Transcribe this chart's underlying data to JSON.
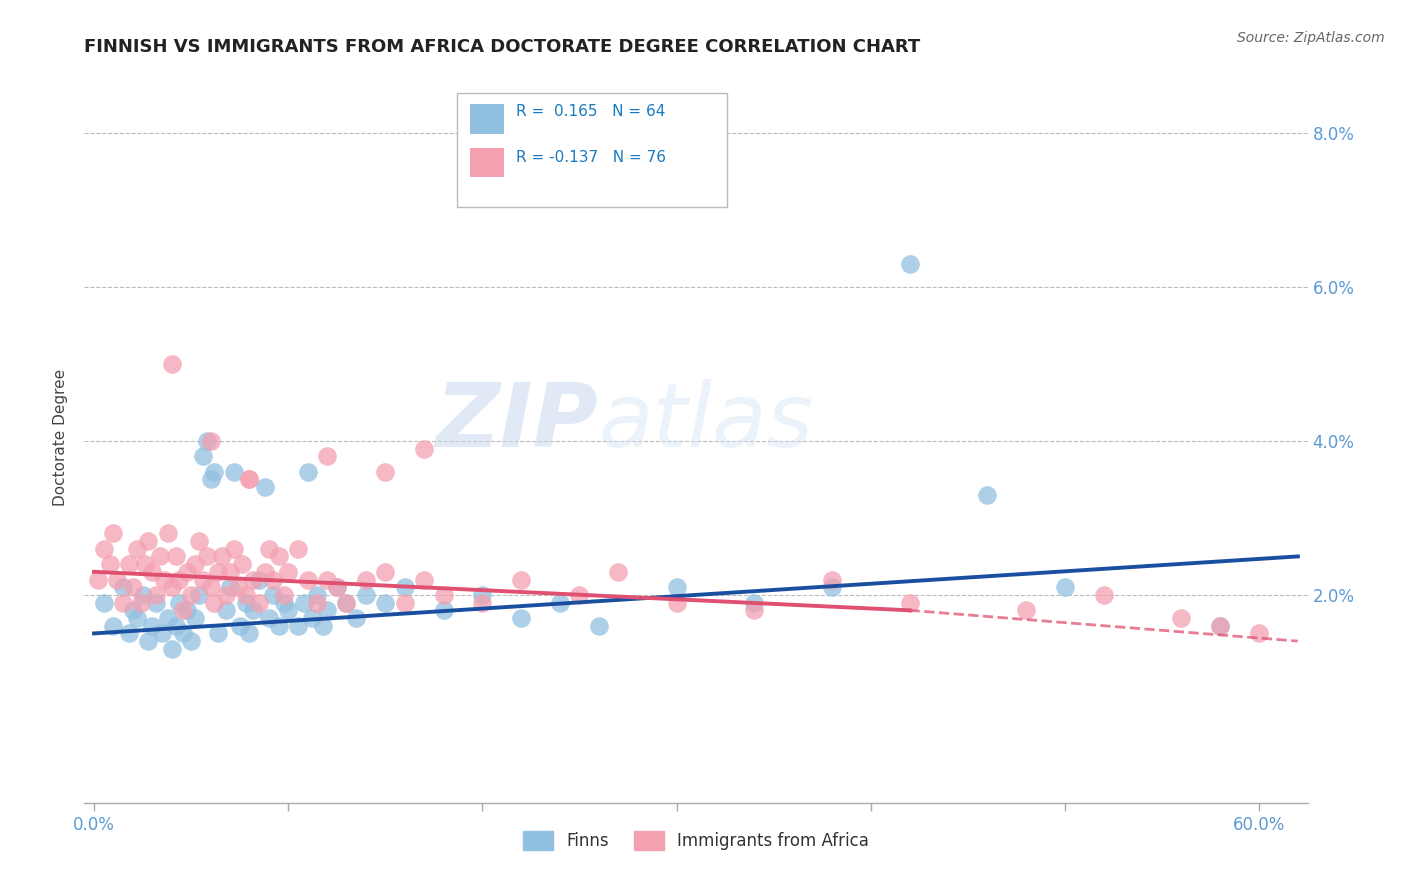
{
  "title": "FINNISH VS IMMIGRANTS FROM AFRICA DOCTORATE DEGREE CORRELATION CHART",
  "source": "Source: ZipAtlas.com",
  "ylabel": "Doctorate Degree",
  "x_tick_positions": [
    0.0,
    0.1,
    0.2,
    0.3,
    0.4,
    0.5,
    0.6
  ],
  "y_ticks": [
    0.0,
    0.02,
    0.04,
    0.06,
    0.08
  ],
  "y_tick_labels": [
    "",
    "2.0%",
    "4.0%",
    "6.0%",
    "8.0%"
  ],
  "xlim": [
    -0.005,
    0.625
  ],
  "ylim": [
    -0.007,
    0.088
  ],
  "finns_color": "#92c0e0",
  "immigrants_color": "#f4a0b0",
  "trend_finns_color": "#1a4fa0",
  "trend_immigrants_color": "#e05070",
  "watermark_zip": "ZIP",
  "watermark_atlas": "atlas",
  "finns_x": [
    0.005,
    0.01,
    0.015,
    0.018,
    0.02,
    0.022,
    0.025,
    0.028,
    0.03,
    0.032,
    0.035,
    0.038,
    0.04,
    0.042,
    0.044,
    0.046,
    0.048,
    0.05,
    0.052,
    0.054,
    0.056,
    0.058,
    0.06,
    0.062,
    0.064,
    0.068,
    0.07,
    0.072,
    0.075,
    0.078,
    0.08,
    0.082,
    0.085,
    0.088,
    0.09,
    0.092,
    0.095,
    0.098,
    0.1,
    0.105,
    0.108,
    0.11,
    0.112,
    0.115,
    0.118,
    0.12,
    0.125,
    0.13,
    0.135,
    0.14,
    0.15,
    0.16,
    0.18,
    0.2,
    0.22,
    0.24,
    0.26,
    0.3,
    0.34,
    0.38,
    0.42,
    0.46,
    0.5,
    0.58
  ],
  "finns_y": [
    0.019,
    0.016,
    0.021,
    0.015,
    0.018,
    0.017,
    0.02,
    0.014,
    0.016,
    0.019,
    0.015,
    0.017,
    0.013,
    0.016,
    0.019,
    0.015,
    0.018,
    0.014,
    0.017,
    0.02,
    0.038,
    0.04,
    0.035,
    0.036,
    0.015,
    0.018,
    0.021,
    0.036,
    0.016,
    0.019,
    0.015,
    0.018,
    0.022,
    0.034,
    0.017,
    0.02,
    0.016,
    0.019,
    0.018,
    0.016,
    0.019,
    0.036,
    0.017,
    0.02,
    0.016,
    0.018,
    0.021,
    0.019,
    0.017,
    0.02,
    0.019,
    0.021,
    0.018,
    0.02,
    0.017,
    0.019,
    0.016,
    0.021,
    0.019,
    0.021,
    0.063,
    0.033,
    0.021,
    0.016
  ],
  "immigrants_x": [
    0.002,
    0.005,
    0.008,
    0.01,
    0.012,
    0.015,
    0.018,
    0.02,
    0.022,
    0.024,
    0.026,
    0.028,
    0.03,
    0.032,
    0.034,
    0.036,
    0.038,
    0.04,
    0.042,
    0.044,
    0.046,
    0.048,
    0.05,
    0.052,
    0.054,
    0.056,
    0.058,
    0.06,
    0.062,
    0.064,
    0.066,
    0.068,
    0.07,
    0.072,
    0.074,
    0.076,
    0.078,
    0.08,
    0.082,
    0.085,
    0.088,
    0.09,
    0.092,
    0.095,
    0.098,
    0.1,
    0.105,
    0.11,
    0.115,
    0.12,
    0.125,
    0.13,
    0.14,
    0.15,
    0.16,
    0.17,
    0.18,
    0.2,
    0.22,
    0.25,
    0.27,
    0.3,
    0.34,
    0.38,
    0.42,
    0.48,
    0.52,
    0.56,
    0.58,
    0.6,
    0.04,
    0.06,
    0.08,
    0.12,
    0.15,
    0.17
  ],
  "immigrants_y": [
    0.022,
    0.026,
    0.024,
    0.028,
    0.022,
    0.019,
    0.024,
    0.021,
    0.026,
    0.019,
    0.024,
    0.027,
    0.023,
    0.02,
    0.025,
    0.022,
    0.028,
    0.021,
    0.025,
    0.022,
    0.018,
    0.023,
    0.02,
    0.024,
    0.027,
    0.022,
    0.025,
    0.021,
    0.019,
    0.023,
    0.025,
    0.02,
    0.023,
    0.026,
    0.021,
    0.024,
    0.02,
    0.035,
    0.022,
    0.019,
    0.023,
    0.026,
    0.022,
    0.025,
    0.02,
    0.023,
    0.026,
    0.022,
    0.019,
    0.022,
    0.021,
    0.019,
    0.022,
    0.023,
    0.019,
    0.022,
    0.02,
    0.019,
    0.022,
    0.02,
    0.023,
    0.019,
    0.018,
    0.022,
    0.019,
    0.018,
    0.02,
    0.017,
    0.016,
    0.015,
    0.05,
    0.04,
    0.035,
    0.038,
    0.036,
    0.039
  ],
  "trend_finns_x0": 0.0,
  "trend_finns_x1": 0.62,
  "trend_finns_y0": 0.015,
  "trend_finns_y1": 0.025,
  "trend_imm_x0": 0.0,
  "trend_imm_x1": 0.42,
  "trend_imm_dash_x0": 0.42,
  "trend_imm_dash_x1": 0.62,
  "trend_imm_y0": 0.023,
  "trend_imm_y1": 0.018,
  "trend_imm_dash_y1": 0.014
}
